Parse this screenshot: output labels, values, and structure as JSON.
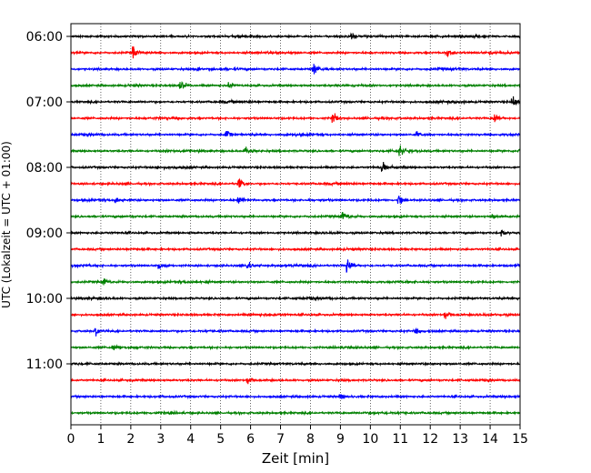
{
  "chart_data": {
    "type": "line",
    "title": "",
    "xlabel": "Zeit  [min]",
    "ylabel": "UTC (Lokalzeit = UTC + 01:00)",
    "xlim": [
      0,
      15
    ],
    "x_ticks": [
      0,
      1,
      2,
      3,
      4,
      5,
      6,
      7,
      8,
      9,
      10,
      11,
      12,
      13,
      14,
      15
    ],
    "x_tick_labels": [
      "0",
      "1",
      "2",
      "3",
      "4",
      "5",
      "6",
      "7",
      "8",
      "9",
      "10",
      "11",
      "12",
      "13",
      "14",
      "15"
    ],
    "y_tick_labels": [
      "06:00",
      "07:00",
      "08:00",
      "09:00",
      "10:00",
      "11:00"
    ],
    "y_tick_trace_index": [
      0,
      4,
      8,
      12,
      16,
      20
    ],
    "x_grid": true,
    "grid_style": "dotted",
    "trace_colors": [
      "#000000",
      "#ff0000",
      "#0000ff",
      "#008000"
    ],
    "trace_count": 24,
    "trace_interval_min": 15,
    "events": [
      {
        "trace": 0,
        "t": 9.4,
        "amp": 0.6
      },
      {
        "trace": 1,
        "t": 2.1,
        "amp": 0.9
      },
      {
        "trace": 1,
        "t": 12.6,
        "amp": 1.0
      },
      {
        "trace": 2,
        "t": 8.1,
        "amp": 1.1
      },
      {
        "trace": 2,
        "t": 4.2,
        "amp": 0.4
      },
      {
        "trace": 3,
        "t": 3.65,
        "amp": 1.0
      },
      {
        "trace": 3,
        "t": 5.3,
        "amp": 0.6
      },
      {
        "trace": 4,
        "t": 14.75,
        "amp": 1.1
      },
      {
        "trace": 5,
        "t": 8.75,
        "amp": 1.0
      },
      {
        "trace": 5,
        "t": 14.15,
        "amp": 1.1
      },
      {
        "trace": 6,
        "t": 5.2,
        "amp": 0.6
      },
      {
        "trace": 6,
        "t": 11.55,
        "amp": 0.6
      },
      {
        "trace": 7,
        "t": 5.85,
        "amp": 0.7
      },
      {
        "trace": 7,
        "t": 11.0,
        "amp": 0.9
      },
      {
        "trace": 7,
        "t": 15.0,
        "amp": 0.9
      },
      {
        "trace": 8,
        "t": 10.4,
        "amp": 0.8
      },
      {
        "trace": 9,
        "t": 5.6,
        "amp": 0.9
      },
      {
        "trace": 10,
        "t": 1.5,
        "amp": 0.7
      },
      {
        "trace": 10,
        "t": 5.6,
        "amp": 0.7
      },
      {
        "trace": 10,
        "t": 10.95,
        "amp": 0.8
      },
      {
        "trace": 11,
        "t": 9.1,
        "amp": 0.7
      },
      {
        "trace": 11,
        "t": 14.1,
        "amp": 0.5
      },
      {
        "trace": 12,
        "t": 14.4,
        "amp": 0.6
      },
      {
        "trace": 14,
        "t": 2.95,
        "amp": 0.7
      },
      {
        "trace": 14,
        "t": 5.9,
        "amp": 0.8
      },
      {
        "trace": 14,
        "t": 9.25,
        "amp": 1.4
      },
      {
        "trace": 15,
        "t": 1.1,
        "amp": 0.6
      },
      {
        "trace": 17,
        "t": 12.5,
        "amp": 0.8
      },
      {
        "trace": 18,
        "t": 0.85,
        "amp": 0.8
      },
      {
        "trace": 18,
        "t": 11.55,
        "amp": 0.6
      },
      {
        "trace": 19,
        "t": 1.4,
        "amp": 0.6
      },
      {
        "trace": 21,
        "t": 5.9,
        "amp": 0.7
      },
      {
        "trace": 22,
        "t": 9.0,
        "amp": 0.5
      }
    ]
  }
}
